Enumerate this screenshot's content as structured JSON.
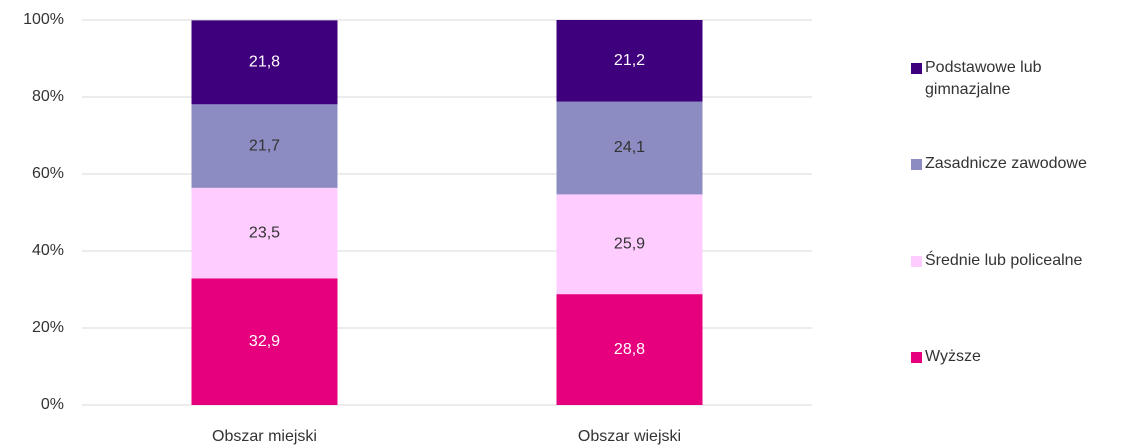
{
  "chart_data": {
    "type": "stacked_bar",
    "categories": [
      "Obszar miejski",
      "Obszar wiejski"
    ],
    "series": [
      {
        "name": "Wyższe",
        "color": "#e6007e",
        "values": [
          32.9,
          28.8
        ],
        "value_labels": [
          "32,9",
          "28,8"
        ]
      },
      {
        "name": "Średnie lub policealne",
        "color": "#ffccff",
        "values": [
          23.5,
          25.9
        ],
        "value_labels": [
          "23,5",
          "25,9"
        ]
      },
      {
        "name": "Zasadnicze zawodowe",
        "color": "#8c8cc3",
        "values": [
          21.7,
          24.1
        ],
        "value_labels": [
          "21,7",
          "24,1"
        ]
      },
      {
        "name": "Podstawowe lub gimnazjalne",
        "color": "#3f007d",
        "values": [
          21.8,
          21.2
        ],
        "value_labels": [
          "21,8",
          "21,2"
        ]
      }
    ],
    "ylim": [
      0,
      100
    ],
    "yticks": [
      {
        "value": 0,
        "label": "0%"
      },
      {
        "value": 20,
        "label": "20%"
      },
      {
        "value": 40,
        "label": "40%"
      },
      {
        "value": 60,
        "label": "60%"
      },
      {
        "value": 80,
        "label": "80%"
      },
      {
        "value": 100,
        "label": "100%"
      }
    ],
    "grid": true,
    "legend": "right"
  }
}
